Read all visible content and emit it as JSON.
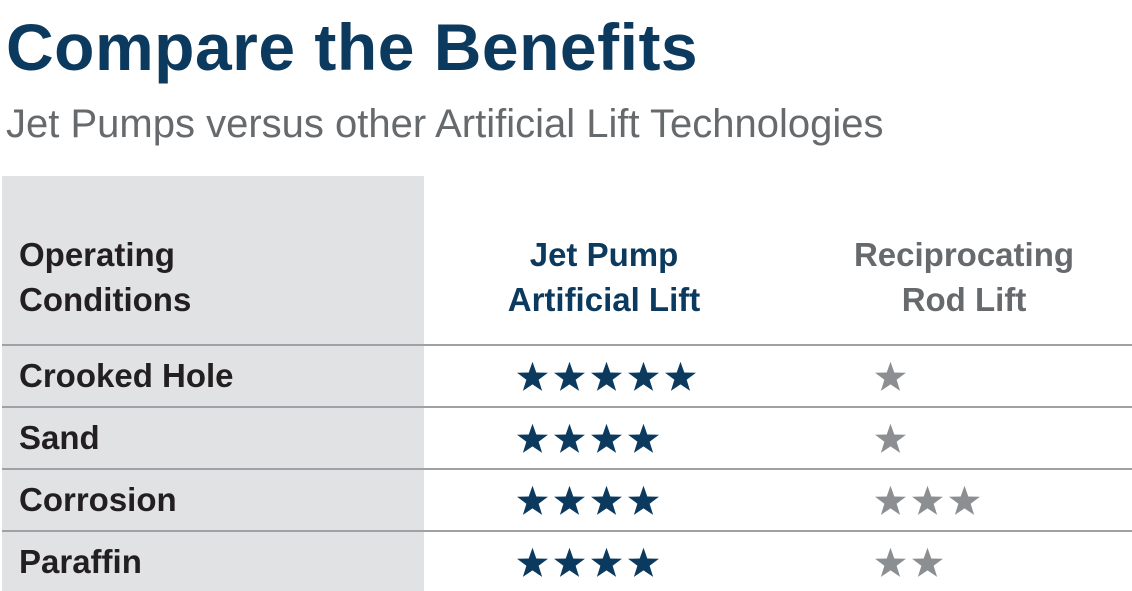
{
  "title": "Compare the Benefits",
  "subtitle": "Jet Pumps versus other Artificial Lift Technologies",
  "colors": {
    "navy": "#0b3a5e",
    "gray_text": "#666a6d",
    "panel": "#e1e2e4",
    "star_gray": "#8c8f92"
  },
  "table": {
    "headers": {
      "conditions": [
        "Operating",
        "Conditions"
      ],
      "jet_pump": [
        "Jet Pump",
        "Artificial Lift"
      ],
      "rod_lift": [
        "Reciprocating",
        "Rod Lift"
      ]
    },
    "rows": [
      {
        "label": "Crooked Hole",
        "jet_pump_rating": 5,
        "rod_lift_rating": 1
      },
      {
        "label": "Sand",
        "jet_pump_rating": 4,
        "rod_lift_rating": 1
      },
      {
        "label": "Corrosion",
        "jet_pump_rating": 4,
        "rod_lift_rating": 3
      },
      {
        "label": "Paraffin",
        "jet_pump_rating": 4,
        "rod_lift_rating": 2
      }
    ],
    "star_icon": "star-icon"
  }
}
